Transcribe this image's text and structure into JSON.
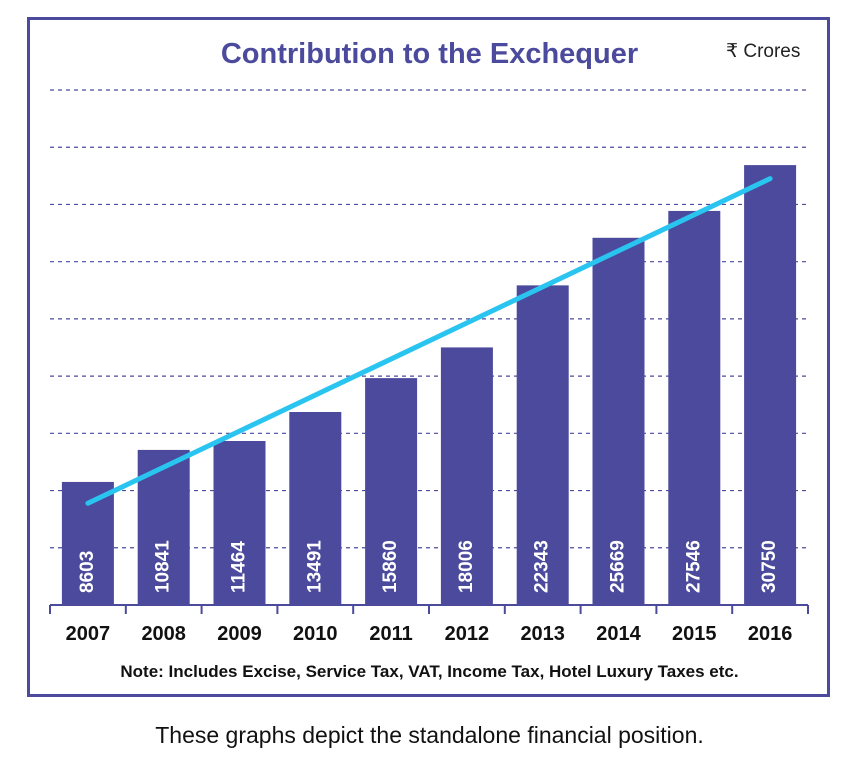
{
  "chart_data": {
    "type": "bar",
    "title": "Contribution to the Exchequer",
    "unit": "₹ Crores",
    "categories": [
      "2007",
      "2008",
      "2009",
      "2010",
      "2011",
      "2012",
      "2013",
      "2014",
      "2015",
      "2016"
    ],
    "values": [
      8603,
      10841,
      11464,
      13491,
      15860,
      18006,
      22343,
      25669,
      27546,
      30750
    ],
    "ylim": [
      0,
      36000
    ],
    "grid": true,
    "trendline": true,
    "note": "Note: Includes Excise, Service Tax, VAT, Income Tax, Hotel Luxury Taxes etc.",
    "colors": {
      "bar": "#4b4a9c",
      "trend": "#29c4ef",
      "grid": "#4b4a9c",
      "bar_label": "#ffffff"
    }
  },
  "caption": "These graphs depict the standalone financial position."
}
